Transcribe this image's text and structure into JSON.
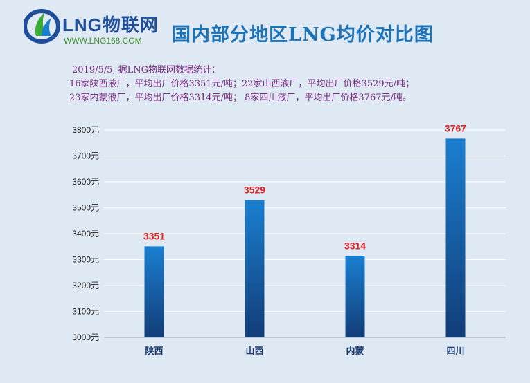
{
  "header": {
    "logo_brand": "LNG物联网",
    "logo_url": "WWW.LNG168.COM",
    "title": "国内部分地区LNG均价对比图"
  },
  "note": {
    "line1": "2019/5/5,   据LNG物联网数据统计：",
    "line2": "16家陕西液厂，平均出厂价格3351元/吨；22家山西液厂，平均出厂价格3529元/吨；",
    "line3": "23家内蒙液厂，平均出厂价格3314元/吨；  8家四川液厂，平均出厂价格3767元/吨。"
  },
  "colors": {
    "bar_top": "#1a7fd0",
    "bar_bottom": "#123d78",
    "data_label": "#e02020",
    "title": "#1d73b8",
    "note": "#7a2a7e"
  },
  "chart_data": {
    "type": "bar",
    "categories": [
      "陕西",
      "山西",
      "内蒙",
      "四川"
    ],
    "values": [
      3351,
      3529,
      3314,
      3767
    ],
    "data_labels": [
      "3351",
      "3529",
      "3314",
      "3767"
    ],
    "title": "国内部分地区LNG均价对比图",
    "xlabel": "",
    "ylabel": "",
    "ylim": [
      3000,
      3800
    ],
    "yticks": [
      3000,
      3100,
      3200,
      3300,
      3400,
      3500,
      3600,
      3700,
      3800
    ],
    "ytick_labels": [
      "3000元",
      "3100元",
      "3200元",
      "3300元",
      "3400元",
      "3500元",
      "3600元",
      "3700元",
      "3800元"
    ],
    "grid": true,
    "legend": "none"
  }
}
